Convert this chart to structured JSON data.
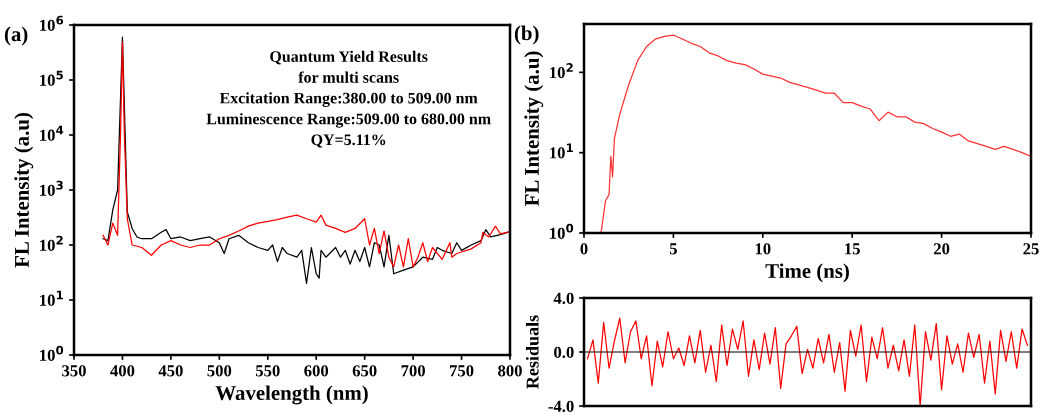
{
  "chart_data": [
    {
      "type": "line",
      "title": "(a)",
      "xlabel": "Wavelength (nm)",
      "ylabel": "FL Intensity (a.u)",
      "log": "y",
      "grid": false,
      "legend": false,
      "annotations": [
        "Quantum Yield Results",
        "for multi scans",
        "Excitation Range:380.00 to 509.00 nm",
        "Luminescence Range:509.00 to 680.00 nm",
        "QY=5.11%"
      ],
      "xlim": [
        350,
        800
      ],
      "xticks": [
        350,
        400,
        450,
        500,
        550,
        600,
        650,
        700,
        750,
        800
      ],
      "ylim": [
        1,
        1000000
      ],
      "yticks": [
        {
          "value": 1,
          "label": "10$^{0}$"
        },
        {
          "value": 10,
          "label": "10$^{1}$"
        },
        {
          "value": 100,
          "label": "10$^{2}$"
        },
        {
          "value": 1000,
          "label": "10$^{3}$"
        },
        {
          "value": 10000,
          "label": "10$^{4}$"
        },
        {
          "value": 100000,
          "label": "10$^{5}$"
        },
        {
          "value": 1000000,
          "label": "10$^{6}$"
        }
      ],
      "series": [
        {
          "color": "#000000",
          "x": [
            380,
            385,
            390,
            395,
            400,
            405,
            410,
            415,
            420,
            430,
            440,
            445,
            450,
            460,
            470,
            480,
            490,
            500,
            505,
            510,
            520,
            530,
            540,
            550,
            555,
            560,
            565,
            570,
            580,
            585,
            590,
            595,
            600,
            603,
            605,
            610,
            620,
            625,
            630,
            635,
            640,
            645,
            650,
            655,
            660,
            665,
            670,
            675,
            680,
            690,
            700,
            710,
            720,
            725,
            730,
            740,
            745,
            750,
            760,
            770,
            775,
            780,
            790,
            800
          ],
          "values": [
            130,
            120,
            430,
            1000,
            600000,
            400,
            200,
            140,
            130,
            130,
            170,
            190,
            130,
            140,
            120,
            130,
            140,
            110,
            70,
            130,
            150,
            110,
            90,
            80,
            100,
            50,
            90,
            70,
            60,
            80,
            20,
            90,
            30,
            25,
            80,
            60,
            90,
            60,
            80,
            45,
            80,
            50,
            90,
            40,
            110,
            100,
            40,
            150,
            30,
            35,
            40,
            60,
            55,
            90,
            80,
            70,
            110,
            80,
            100,
            120,
            190,
            140,
            155,
            175
          ]
        },
        {
          "color": "#ff0000",
          "x": [
            380,
            385,
            390,
            395,
            398,
            400,
            402,
            405,
            410,
            420,
            430,
            440,
            450,
            460,
            470,
            480,
            490,
            500,
            510,
            520,
            530,
            540,
            550,
            560,
            570,
            580,
            590,
            600,
            605,
            610,
            620,
            630,
            640,
            650,
            655,
            660,
            665,
            670,
            675,
            680,
            685,
            690,
            695,
            700,
            705,
            710,
            715,
            720,
            730,
            738,
            740,
            745,
            760,
            770,
            772,
            778,
            785,
            790,
            800
          ],
          "values": [
            150,
            100,
            250,
            150,
            10000,
            500000,
            10000,
            300,
            100,
            90,
            65,
            100,
            120,
            100,
            90,
            100,
            100,
            130,
            150,
            180,
            220,
            250,
            270,
            290,
            320,
            350,
            300,
            260,
            350,
            230,
            200,
            170,
            200,
            300,
            100,
            200,
            70,
            180,
            60,
            40,
            100,
            40,
            130,
            40,
            60,
            110,
            50,
            90,
            55,
            110,
            60,
            70,
            85,
            110,
            170,
            140,
            220,
            160,
            175
          ]
        }
      ]
    },
    {
      "type": "line",
      "title": "(b)",
      "xlabel": "Time (ns)",
      "ylabel": "FL Intensity (a.u)",
      "log": "y",
      "grid": false,
      "legend": false,
      "xlim": [
        0,
        25
      ],
      "xticks": [
        0,
        5,
        10,
        15,
        20,
        25
      ],
      "ylim": [
        1,
        400
      ],
      "yticks": [
        {
          "value": 1,
          "label": "10$^{0}$"
        },
        {
          "value": 10,
          "label": "10$^{1}$"
        },
        {
          "value": 100,
          "label": "10$^{2}$"
        }
      ],
      "series": [
        {
          "color": "#ff3333",
          "x": [
            0.95,
            1.2,
            1.4,
            1.5,
            1.6,
            1.7,
            2.0,
            2.3,
            2.5,
            3.0,
            3.5,
            4.0,
            4.5,
            5.0,
            5.5,
            6.0,
            6.5,
            7.0,
            7.5,
            8.0,
            8.5,
            9.0,
            9.5,
            10.0,
            10.5,
            11.0,
            11.5,
            12.0,
            12.5,
            13.0,
            13.5,
            14.0,
            14.5,
            15.0,
            15.5,
            16.0,
            16.5,
            17.0,
            17.5,
            18.0,
            18.5,
            19.0,
            19.5,
            20.0,
            20.5,
            21.0,
            21.5,
            22.0,
            22.5,
            23.0,
            23.5,
            24.0,
            24.5,
            25.0
          ],
          "values": [
            1,
            2.5,
            3,
            9,
            5,
            15,
            30,
            50,
            70,
            140,
            210,
            260,
            280,
            290,
            260,
            230,
            210,
            175,
            160,
            140,
            130,
            125,
            110,
            95,
            90,
            85,
            75,
            70,
            65,
            60,
            55,
            55,
            42,
            42,
            38,
            35,
            25,
            32,
            28,
            28,
            24,
            23,
            20,
            18,
            16,
            17,
            14,
            13,
            12,
            11,
            12,
            11,
            10,
            9
          ]
        }
      ]
    },
    {
      "type": "line",
      "ylabel": "Residuals",
      "grid": false,
      "legend": false,
      "tick_labels": "y",
      "xlim": [
        0,
        25
      ],
      "ylim": [
        -4,
        4
      ],
      "yticks": [
        {
          "value": -4,
          "label": "-4.0"
        },
        {
          "value": 0,
          "label": "0.0"
        },
        {
          "value": 4,
          "label": "4.0"
        }
      ],
      "ref_lines": [
        {
          "axis": "y",
          "value": 0,
          "color": "#000000"
        }
      ],
      "series": [
        {
          "color": "#ff0000",
          "x": [
            0.2,
            0.5,
            0.8,
            1.1,
            1.4,
            1.7,
            2.0,
            2.3,
            2.6,
            2.9,
            3.2,
            3.5,
            3.8,
            4.1,
            4.4,
            4.7,
            5.0,
            5.3,
            5.6,
            5.9,
            6.2,
            6.5,
            6.8,
            7.1,
            7.4,
            7.7,
            8.0,
            8.3,
            8.6,
            8.9,
            9.2,
            9.5,
            9.8,
            10.1,
            10.4,
            10.7,
            11.0,
            11.3,
            11.6,
            11.9,
            12.2,
            12.5,
            12.8,
            13.1,
            13.4,
            13.7,
            14.0,
            14.3,
            14.6,
            14.9,
            15.2,
            15.5,
            15.8,
            16.1,
            16.4,
            16.7,
            17.0,
            17.3,
            17.6,
            17.9,
            18.2,
            18.5,
            18.8,
            19.1,
            19.4,
            19.7,
            20.0,
            20.3,
            20.6,
            20.9,
            21.2,
            21.5,
            21.8,
            22.1,
            22.4,
            22.7,
            23.0,
            23.3,
            23.6,
            23.9,
            24.2,
            24.5,
            24.8
          ],
          "values": [
            -0.5,
            0.9,
            -2.3,
            2.2,
            -1.2,
            0.8,
            2.5,
            -0.8,
            1.5,
            2.3,
            -0.5,
            1.2,
            -2.5,
            0.8,
            -1.1,
            1.5,
            -0.5,
            0.3,
            -1.0,
            1.2,
            -0.8,
            1.6,
            -1.5,
            0.5,
            -2.2,
            2.0,
            -1.0,
            1.7,
            0.2,
            2.3,
            -1.8,
            0.9,
            -1.3,
            1.4,
            -0.9,
            1.8,
            -2.7,
            0.6,
            1.2,
            1.9,
            -1.6,
            0.2,
            -1.2,
            1.0,
            -0.8,
            1.3,
            -1.5,
            0.7,
            -2.9,
            1.6,
            -0.3,
            2.0,
            -2.2,
            1.1,
            -0.5,
            1.8,
            -1.2,
            0.5,
            -1.4,
            0.9,
            -1.8,
            2.0,
            -4.0,
            1.5,
            -0.6,
            2.1,
            -2.8,
            1.2,
            -0.9,
            0.6,
            -1.5,
            1.4,
            -0.4,
            1.3,
            -2.3,
            0.8,
            -3.1,
            1.6,
            -0.7,
            1.5,
            -1.2,
            1.7,
            0.5
          ]
        }
      ]
    }
  ]
}
